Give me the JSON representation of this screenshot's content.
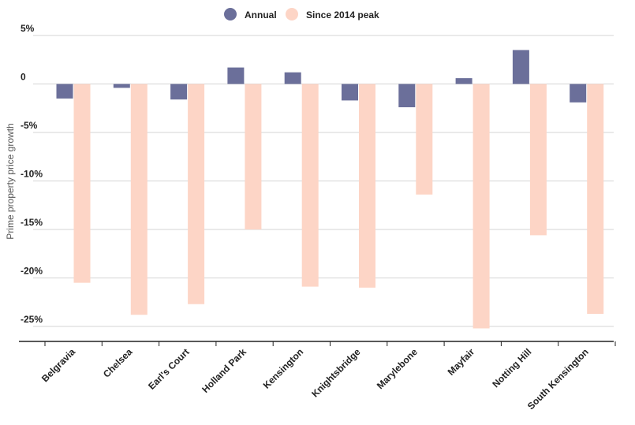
{
  "chart_data": {
    "type": "bar",
    "title": "",
    "xlabel": "",
    "ylabel": "Prime property price growth",
    "ylim": [
      -26.5,
      5
    ],
    "grid": true,
    "legend_position": "top-center",
    "y_ticks": [
      {
        "value": 5,
        "label": "5%"
      },
      {
        "value": 0,
        "label": "0"
      },
      {
        "value": -5,
        "label": "-5%"
      },
      {
        "value": -10,
        "label": "-10%"
      },
      {
        "value": -15,
        "label": "-15%"
      },
      {
        "value": -20,
        "label": "-20%"
      },
      {
        "value": -25,
        "label": "-25%"
      }
    ],
    "categories": [
      "Belgravia",
      "Chelsea",
      "Earl's Court",
      "Holland Park",
      "Kensington",
      "Knightsbridge",
      "Marylebone",
      "Mayfair",
      "Notting Hill",
      "South Kensington"
    ],
    "series": [
      {
        "name": "Annual",
        "color": "#6b6f9a",
        "values": [
          -1.5,
          -0.4,
          -1.6,
          1.7,
          1.2,
          -1.7,
          -2.4,
          0.6,
          3.5,
          -1.9
        ]
      },
      {
        "name": "Since 2014 peak",
        "color": "#fdd5c6",
        "values": [
          -20.5,
          -23.8,
          -22.7,
          -15.0,
          -20.9,
          -21.0,
          -11.4,
          -25.2,
          -15.6,
          -23.7
        ]
      }
    ]
  }
}
